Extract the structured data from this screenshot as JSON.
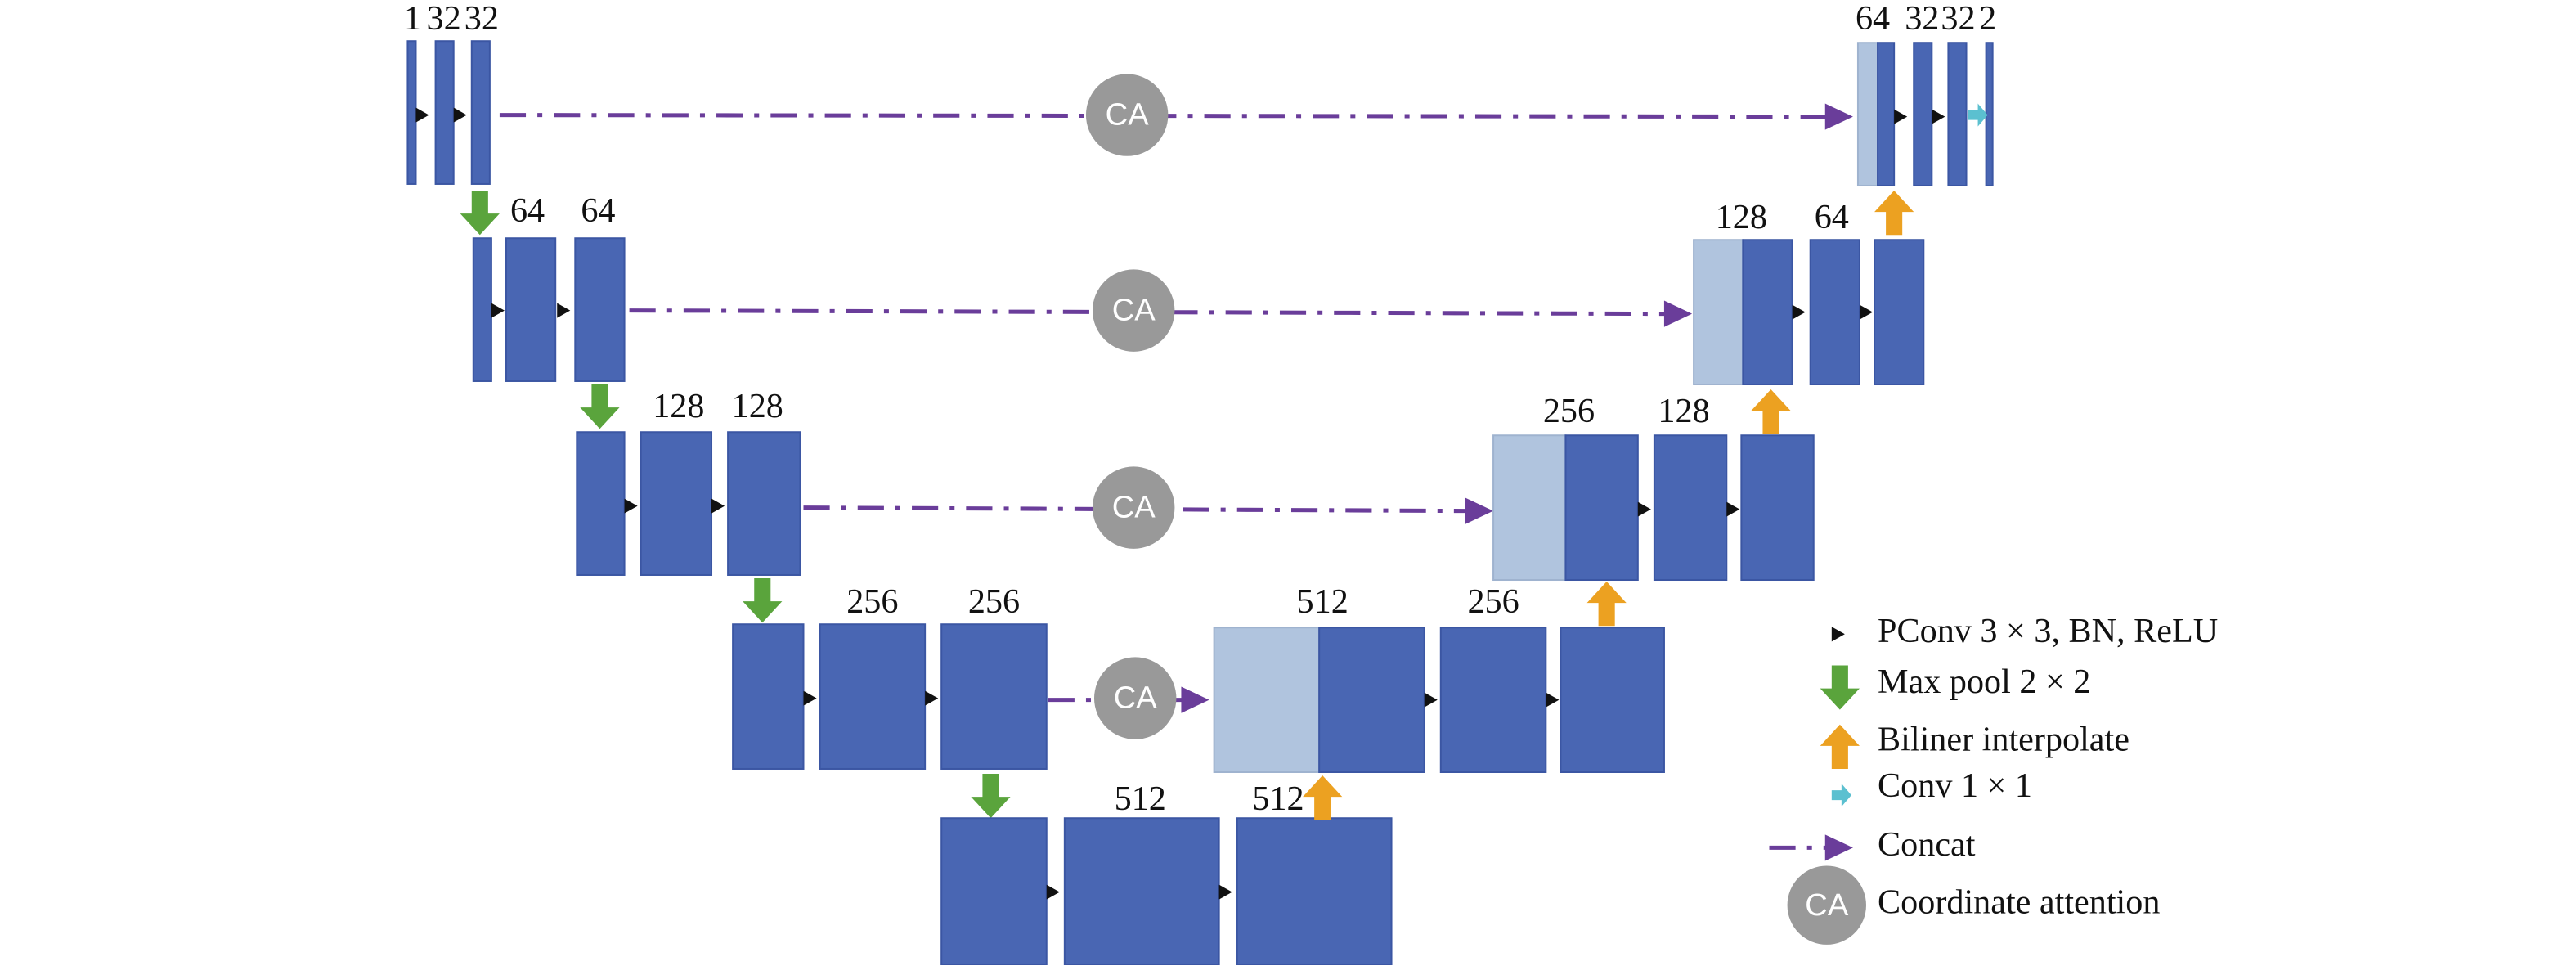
{
  "levels": [
    {
      "encoder_labels": [
        "1",
        "32",
        "32"
      ],
      "decoder_labels": [
        "64",
        "32",
        "32",
        "2"
      ],
      "attention": "CA"
    },
    {
      "encoder_labels": [
        "64",
        "64"
      ],
      "decoder_labels": [
        "128",
        "64"
      ],
      "attention": "CA"
    },
    {
      "encoder_labels": [
        "128",
        "128"
      ],
      "decoder_labels": [
        "256",
        "128"
      ],
      "attention": "CA"
    },
    {
      "encoder_labels": [
        "256",
        "256"
      ],
      "decoder_labels": [
        "512",
        "256"
      ],
      "attention": "CA"
    }
  ],
  "bottleneck": {
    "labels": [
      "512",
      "512"
    ]
  },
  "legend": [
    {
      "label": "PConv 3 × 3, BN, ReLU"
    },
    {
      "label": "Max pool 2 × 2"
    },
    {
      "label": "Biliner interpolate"
    },
    {
      "label": "Conv 1 × 1"
    },
    {
      "label": "Concat"
    },
    {
      "symbol": "CA",
      "label": "Coordinate attention"
    }
  ]
}
